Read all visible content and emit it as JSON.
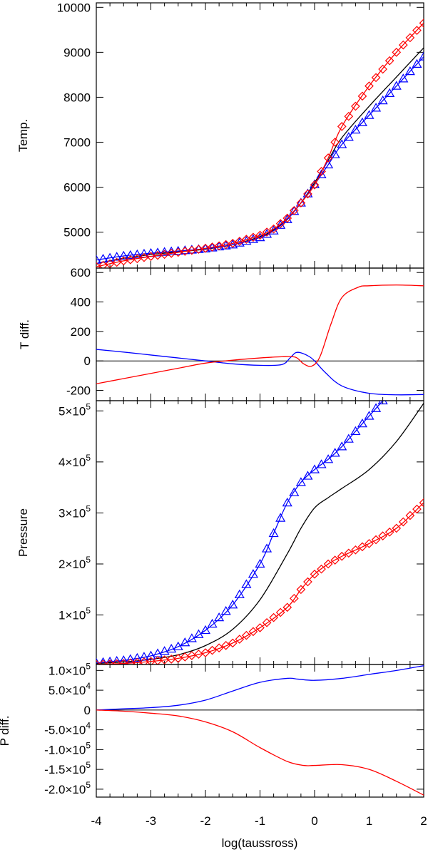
{
  "colors": {
    "reference": "#000000",
    "model_a": "#0000ff",
    "model_b": "#ff0000",
    "zero_line": "#000000"
  },
  "x_axis": {
    "label": "log(taussross)",
    "range": [
      -4,
      2
    ],
    "ticks": [
      -4,
      -3,
      -2,
      -1,
      0,
      1,
      2
    ],
    "tick_labels": [
      "-4",
      "-3",
      "-2",
      "-1",
      "0",
      "1",
      "2"
    ]
  },
  "chart_data": [
    {
      "id": "temp",
      "type": "line",
      "ylabel": "Temp.",
      "ylim": [
        4200,
        10100
      ],
      "ticks": [
        5000,
        6000,
        7000,
        8000,
        9000,
        10000
      ],
      "tick_labels": [
        {
          "mant": "5000"
        },
        {
          "mant": "6000"
        },
        {
          "mant": "7000"
        },
        {
          "mant": "8000"
        },
        {
          "mant": "9000"
        },
        {
          "mant": "10000"
        }
      ],
      "zero_line": false,
      "series": [
        {
          "name": "reference",
          "color": "reference",
          "marker": "none",
          "x": [
            -4,
            -3.5,
            -3,
            -2.5,
            -2,
            -1.5,
            -1,
            -0.75,
            -0.5,
            -0.25,
            0,
            0.25,
            0.5,
            1,
            1.5,
            2
          ],
          "y": [
            4300,
            4420,
            4500,
            4560,
            4620,
            4720,
            4900,
            5050,
            5300,
            5650,
            6100,
            6600,
            7100,
            7800,
            8450,
            9100
          ]
        },
        {
          "name": "triangles",
          "color": "model_a",
          "marker": "triangle",
          "x": [
            -4,
            -3.5,
            -3,
            -2.5,
            -2,
            -1.5,
            -1,
            -0.75,
            -0.5,
            -0.25,
            0,
            0.25,
            0.5,
            1,
            1.5,
            2
          ],
          "y": [
            4380,
            4470,
            4530,
            4580,
            4630,
            4720,
            4880,
            5030,
            5280,
            5650,
            6060,
            6500,
            6950,
            7600,
            8250,
            8900
          ]
        },
        {
          "name": "diamonds",
          "color": "model_b",
          "marker": "diamond",
          "x": [
            -4,
            -3.5,
            -3,
            -2.5,
            -2,
            -1.5,
            -1,
            -0.75,
            -0.5,
            -0.25,
            0,
            0.25,
            0.5,
            1,
            1.5,
            2
          ],
          "y": [
            4230,
            4360,
            4460,
            4550,
            4640,
            4750,
            4930,
            5070,
            5310,
            5650,
            6050,
            6650,
            7350,
            8250,
            9000,
            9650
          ]
        }
      ]
    },
    {
      "id": "tdiff",
      "type": "line",
      "ylabel": "T diff.",
      "ylim": [
        -270,
        630
      ],
      "ticks": [
        -200,
        0,
        200,
        400,
        600
      ],
      "tick_labels": [
        {
          "mant": "-200"
        },
        {
          "mant": "0"
        },
        {
          "mant": "200"
        },
        {
          "mant": "400"
        },
        {
          "mant": "600"
        }
      ],
      "zero_line": true,
      "series": [
        {
          "name": "triangles",
          "color": "model_a",
          "marker": "none",
          "x": [
            -4,
            -3.5,
            -3,
            -2.5,
            -2,
            -1.5,
            -1,
            -0.6,
            -0.45,
            -0.35,
            -0.25,
            -0.1,
            0,
            0.2,
            0.5,
            1,
            1.5,
            2
          ],
          "y": [
            78,
            60,
            40,
            20,
            0,
            -20,
            -30,
            -25,
            20,
            55,
            55,
            30,
            0,
            -80,
            -170,
            -220,
            -230,
            -228
          ]
        },
        {
          "name": "diamonds",
          "color": "model_b",
          "marker": "none",
          "x": [
            -4,
            -3.5,
            -3,
            -2.5,
            -2,
            -1.5,
            -1,
            -0.6,
            -0.35,
            -0.2,
            -0.05,
            0.1,
            0.3,
            0.5,
            0.8,
            1,
            1.5,
            2
          ],
          "y": [
            -155,
            -120,
            -85,
            -50,
            -15,
            5,
            20,
            28,
            25,
            -20,
            -35,
            30,
            250,
            430,
            500,
            510,
            515,
            510
          ]
        }
      ]
    },
    {
      "id": "pressure",
      "type": "line",
      "ylabel": "Pressure",
      "ylim": [
        3000,
        520000
      ],
      "ticks": [
        100000,
        200000,
        300000,
        400000,
        500000
      ],
      "tick_labels": [
        {
          "mant": "1",
          "exp": "5"
        },
        {
          "mant": "2",
          "exp": "5"
        },
        {
          "mant": "3",
          "exp": "5"
        },
        {
          "mant": "4",
          "exp": "5"
        },
        {
          "mant": "5",
          "exp": "5"
        }
      ],
      "zero_line": false,
      "series": [
        {
          "name": "reference",
          "color": "reference",
          "marker": "none",
          "x": [
            -4,
            -3.5,
            -3,
            -2.5,
            -2,
            -1.5,
            -1,
            -0.5,
            -0.25,
            0,
            0.25,
            0.5,
            1,
            1.5,
            2
          ],
          "y": [
            5000,
            8000,
            13000,
            22000,
            40000,
            72000,
            130000,
            220000,
            270000,
            310000,
            330000,
            348000,
            385000,
            440000,
            515000
          ]
        },
        {
          "name": "triangles",
          "color": "model_a",
          "marker": "triangle",
          "x": [
            -4,
            -3.5,
            -3,
            -2.5,
            -2,
            -1.5,
            -1,
            -0.75,
            -0.5,
            -0.25,
            0,
            0.25,
            0.5,
            0.75,
            1,
            1.25
          ],
          "y": [
            6000,
            11000,
            20000,
            38000,
            70000,
            120000,
            200000,
            260000,
            320000,
            360000,
            385000,
            405000,
            430000,
            460000,
            490000,
            520000
          ]
        },
        {
          "name": "diamonds",
          "color": "model_b",
          "marker": "diamond",
          "x": [
            -4,
            -3.5,
            -3,
            -2.5,
            -2,
            -1.5,
            -1,
            -0.5,
            -0.25,
            0,
            0.25,
            0.5,
            1,
            1.5,
            2
          ],
          "y": [
            3000,
            5000,
            9000,
            15000,
            26000,
            45000,
            75000,
            115000,
            150000,
            180000,
            200000,
            215000,
            240000,
            270000,
            320000
          ]
        }
      ]
    },
    {
      "id": "pdiff",
      "type": "line",
      "ylabel": "P diff.",
      "ylim": [
        -220000,
        115000
      ],
      "ticks": [
        -200000,
        -150000,
        -100000,
        -50000,
        0,
        50000,
        100000
      ],
      "tick_labels": [
        {
          "mant": "-2.0",
          "exp": "5"
        },
        {
          "mant": "-1.5",
          "exp": "5"
        },
        {
          "mant": "-1.0",
          "exp": "5"
        },
        {
          "mant": "-5.0",
          "exp": "4"
        },
        {
          "mant": "0"
        },
        {
          "mant": "5.0",
          "exp": "4"
        },
        {
          "mant": "1.0",
          "exp": "5"
        }
      ],
      "zero_line": true,
      "series": [
        {
          "name": "triangles",
          "color": "model_a",
          "marker": "none",
          "x": [
            -4,
            -3.5,
            -3,
            -2.5,
            -2,
            -1.5,
            -1,
            -0.5,
            -0.3,
            0,
            0.5,
            1,
            1.5,
            2
          ],
          "y": [
            0,
            3000,
            6000,
            12000,
            25000,
            48000,
            70000,
            80000,
            78000,
            75000,
            80000,
            90000,
            100000,
            112000
          ]
        },
        {
          "name": "diamonds",
          "color": "model_b",
          "marker": "none",
          "x": [
            -4,
            -3.5,
            -3,
            -2.5,
            -2,
            -1.5,
            -1,
            -0.5,
            -0.2,
            0,
            0.5,
            1,
            1.5,
            2
          ],
          "y": [
            0,
            -3000,
            -8000,
            -15000,
            -30000,
            -55000,
            -95000,
            -130000,
            -140000,
            -140000,
            -138000,
            -150000,
            -180000,
            -215000
          ]
        }
      ]
    }
  ]
}
